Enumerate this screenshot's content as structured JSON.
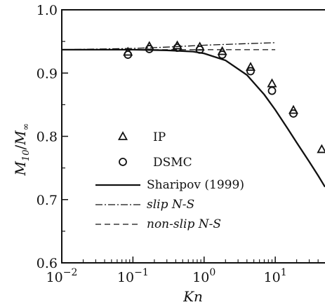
{
  "chart_data": {
    "type": "scatter",
    "x_scale": "log",
    "xlim": [
      0.01,
      50
    ],
    "ylim": [
      0.6,
      1.0
    ],
    "x_ticks": [
      {
        "value": 0.01,
        "base": "10",
        "exp": "−2"
      },
      {
        "value": 0.1,
        "base": "10",
        "exp": "−1"
      },
      {
        "value": 1,
        "base": "10",
        "exp": "0"
      },
      {
        "value": 10,
        "base": "10",
        "exp": "1"
      }
    ],
    "y_ticks": [
      {
        "value": 0.6,
        "label": "0.6"
      },
      {
        "value": 0.7,
        "label": "0.7"
      },
      {
        "value": 0.8,
        "label": "0.8"
      },
      {
        "value": 0.9,
        "label": "0.9"
      },
      {
        "value": 1.0,
        "label": "1.0"
      }
    ],
    "xlabel": "Kn",
    "ylabel": {
      "m": "M",
      "sub_main": "10",
      "sep": "/",
      "sub_ref": "∞"
    },
    "legend_position": "center",
    "series": [
      {
        "name": "IP",
        "marker": "triangle",
        "x": [
          0.085,
          0.17,
          0.42,
          0.87,
          1.8,
          4.5,
          9.0,
          18,
          45
        ],
        "y": [
          0.933,
          0.942,
          0.943,
          0.941,
          0.934,
          0.909,
          0.883,
          0.841,
          0.779
        ]
      },
      {
        "name": "DSMC",
        "marker": "circle",
        "x": [
          0.085,
          0.17,
          0.42,
          0.87,
          1.8,
          4.5,
          9.0,
          18
        ],
        "y": [
          0.929,
          0.938,
          0.94,
          0.937,
          0.929,
          0.903,
          0.872,
          0.836
        ]
      },
      {
        "name": "Sharipov (1999)",
        "style": "solid",
        "x": [
          0.01,
          0.1,
          0.3,
          0.7,
          1.0,
          2.0,
          4.0,
          7.0,
          10,
          15,
          20,
          30,
          40,
          50
        ],
        "y": [
          0.937,
          0.937,
          0.936,
          0.934,
          0.931,
          0.92,
          0.897,
          0.866,
          0.842,
          0.812,
          0.79,
          0.76,
          0.738,
          0.72
        ]
      },
      {
        "name": "slip N-S",
        "style": "dashdot",
        "x": [
          0.01,
          0.1,
          0.3,
          1.0,
          3.0,
          10
        ],
        "y": [
          0.937,
          0.939,
          0.941,
          0.944,
          0.946,
          0.948
        ]
      },
      {
        "name": "non-slip N-S",
        "style": "dashed",
        "x": [
          0.01,
          0.1,
          1.0,
          10
        ],
        "y": [
          0.937,
          0.937,
          0.937,
          0.937
        ]
      }
    ]
  }
}
